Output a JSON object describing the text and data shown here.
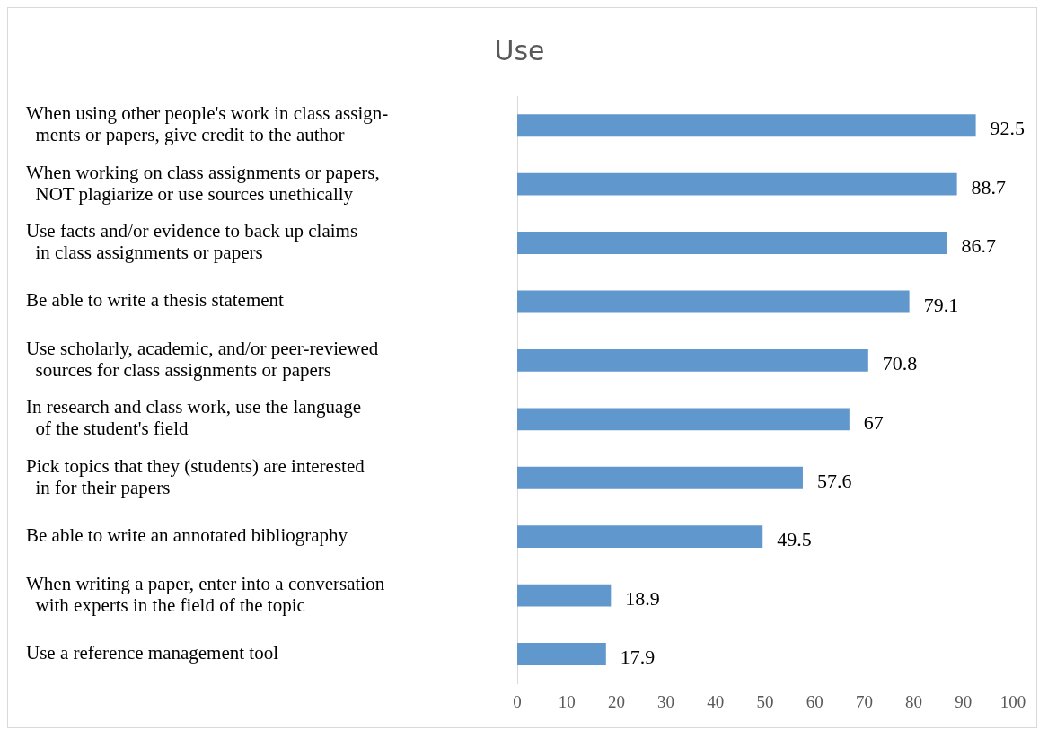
{
  "chart_data": {
    "type": "bar",
    "orientation": "horizontal",
    "title": "Use",
    "categories": [
      "When using other people's work in class assign-\n  ments or papers, give credit to the author",
      "When working on class assignments or papers,\n  NOT plagiarize or use sources unethically",
      "Use facts and/or evidence to back up claims\n  in class assignments or papers",
      "Be able to write a thesis statement",
      "Use scholarly, academic, and/or peer-reviewed\n  sources for class assignments or papers",
      "In research and class work, use the language\n  of the student's field",
      "Pick topics that they (students) are interested\n  in for their papers",
      "Be able to write an annotated bibliography",
      "When writing a paper, enter into a conversation\n  with experts in the field of the topic",
      "Use a reference management tool"
    ],
    "values": [
      92.5,
      88.7,
      86.7,
      79.1,
      70.8,
      67,
      57.6,
      49.5,
      18.9,
      17.9
    ],
    "color": "#6097cc",
    "xlim": [
      0,
      100
    ],
    "xticks": [
      0,
      10,
      20,
      30,
      40,
      50,
      60,
      70,
      80,
      90,
      100
    ],
    "grid": false,
    "legend": false,
    "data_labels": true
  }
}
